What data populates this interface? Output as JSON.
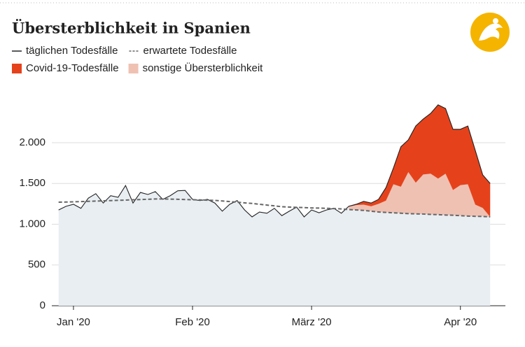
{
  "chart_data": {
    "type": "area",
    "title": "Übersterblichkeit in Spanien",
    "categories": [
      null,
      null,
      "Jan '20",
      null,
      null,
      null,
      null,
      null,
      null,
      null,
      null,
      null,
      null,
      null,
      null,
      null,
      null,
      null,
      "Feb '20",
      null,
      null,
      null,
      null,
      null,
      null,
      null,
      null,
      null,
      null,
      null,
      null,
      null,
      null,
      null,
      "März '20",
      null,
      null,
      null,
      null,
      null,
      null,
      null,
      null,
      null,
      null,
      null,
      null,
      null,
      null,
      null,
      null,
      null,
      null,
      null,
      "Apr '20",
      null,
      null,
      null,
      null
    ],
    "ylim": [
      0,
      2500
    ],
    "yticks": [
      0,
      500,
      {
        "value": 1000,
        "label": "1.000"
      },
      {
        "value": 1500,
        "label": "1.500"
      },
      {
        "value": 2000,
        "label": "2.000"
      }
    ],
    "grid": true,
    "base_color": "#e8eef2",
    "series": [
      {
        "name": "täglichen Todesfälle",
        "kind": "line",
        "color": "#222222",
        "values": [
          1175,
          1220,
          1245,
          1195,
          1320,
          1375,
          1260,
          1350,
          1330,
          1475,
          1260,
          1390,
          1365,
          1400,
          1305,
          1350,
          1410,
          1415,
          1305,
          1290,
          1305,
          1260,
          1160,
          1245,
          1290,
          1175,
          1090,
          1150,
          1135,
          1195,
          1105,
          1160,
          1210,
          1090,
          1175,
          1140,
          1175,
          1195,
          1135,
          1220,
          1245,
          1280,
          1260,
          1305,
          1450,
          1690,
          1950,
          2035,
          2205,
          2290,
          2360,
          2465,
          2420,
          2165,
          2165,
          2205,
          1905,
          1605,
          1500
        ]
      },
      {
        "name": "erwartete Todesfälle",
        "kind": "dashed",
        "color": "#666666",
        "values": [
          1270,
          1272,
          1275,
          1278,
          1281,
          1284,
          1287,
          1290,
          1293,
          1296,
          1300,
          1303,
          1306,
          1310,
          1310,
          1308,
          1306,
          1303,
          1300,
          1298,
          1295,
          1292,
          1285,
          1278,
          1270,
          1262,
          1255,
          1245,
          1235,
          1225,
          1215,
          1210,
          1207,
          1204,
          1200,
          1198,
          1195,
          1192,
          1188,
          1180,
          1175,
          1170,
          1160,
          1150,
          1145,
          1140,
          1135,
          1130,
          1127,
          1125,
          1120,
          1117,
          1113,
          1110,
          1105,
          1100,
          1097,
          1095,
          1090
        ]
      },
      {
        "name": "Covid-19-Todesfälle",
        "kind": "stack",
        "color": "#e5421b",
        "values": [
          null,
          null,
          null,
          null,
          null,
          null,
          null,
          null,
          null,
          null,
          null,
          null,
          null,
          null,
          null,
          null,
          null,
          null,
          null,
          null,
          null,
          null,
          null,
          null,
          null,
          null,
          null,
          null,
          null,
          null,
          null,
          null,
          null,
          null,
          null,
          null,
          null,
          null,
          null,
          5,
          10,
          40,
          40,
          55,
          160,
          200,
          490,
          395,
          695,
          680,
          740,
          905,
          800,
          745,
          685,
          715,
          665,
          405,
          410
        ]
      },
      {
        "name": "sonstige Übersterblichkeit",
        "kind": "stack",
        "color": "#efc1b3",
        "values": [
          null,
          null,
          null,
          null,
          null,
          null,
          null,
          null,
          null,
          null,
          null,
          null,
          null,
          null,
          null,
          null,
          null,
          null,
          null,
          null,
          null,
          null,
          null,
          null,
          null,
          null,
          null,
          null,
          null,
          null,
          null,
          null,
          null,
          null,
          null,
          null,
          null,
          null,
          null,
          35,
          60,
          70,
          60,
          100,
          145,
          350,
          325,
          510,
          383,
          485,
          500,
          443,
          507,
          310,
          375,
          390,
          143,
          105,
          0
        ]
      }
    ]
  }
}
